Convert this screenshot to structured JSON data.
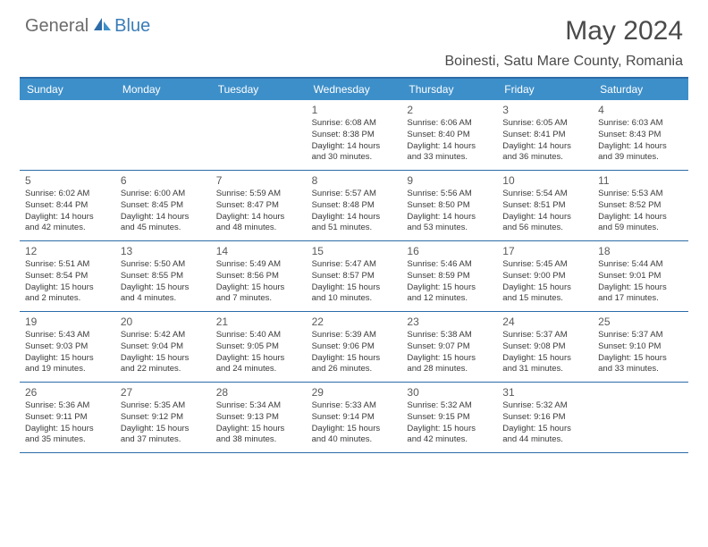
{
  "logo": {
    "text1": "General",
    "text2": "Blue"
  },
  "title": "May 2024",
  "location": "Boinesti, Satu Mare County, Romania",
  "colors": {
    "header_bg": "#3d8fc9",
    "header_text": "#ffffff",
    "border": "#2d6ca8",
    "logo_gray": "#6b6b6b",
    "logo_blue": "#3a7cb8",
    "day_num": "#5a5a5a",
    "info_text": "#3a3a3a"
  },
  "day_names": [
    "Sunday",
    "Monday",
    "Tuesday",
    "Wednesday",
    "Thursday",
    "Friday",
    "Saturday"
  ],
  "weeks": [
    [
      null,
      null,
      null,
      {
        "n": "1",
        "sr": "6:08 AM",
        "ss": "8:38 PM",
        "dl": "14 hours and 30 minutes."
      },
      {
        "n": "2",
        "sr": "6:06 AM",
        "ss": "8:40 PM",
        "dl": "14 hours and 33 minutes."
      },
      {
        "n": "3",
        "sr": "6:05 AM",
        "ss": "8:41 PM",
        "dl": "14 hours and 36 minutes."
      },
      {
        "n": "4",
        "sr": "6:03 AM",
        "ss": "8:43 PM",
        "dl": "14 hours and 39 minutes."
      }
    ],
    [
      {
        "n": "5",
        "sr": "6:02 AM",
        "ss": "8:44 PM",
        "dl": "14 hours and 42 minutes."
      },
      {
        "n": "6",
        "sr": "6:00 AM",
        "ss": "8:45 PM",
        "dl": "14 hours and 45 minutes."
      },
      {
        "n": "7",
        "sr": "5:59 AM",
        "ss": "8:47 PM",
        "dl": "14 hours and 48 minutes."
      },
      {
        "n": "8",
        "sr": "5:57 AM",
        "ss": "8:48 PM",
        "dl": "14 hours and 51 minutes."
      },
      {
        "n": "9",
        "sr": "5:56 AM",
        "ss": "8:50 PM",
        "dl": "14 hours and 53 minutes."
      },
      {
        "n": "10",
        "sr": "5:54 AM",
        "ss": "8:51 PM",
        "dl": "14 hours and 56 minutes."
      },
      {
        "n": "11",
        "sr": "5:53 AM",
        "ss": "8:52 PM",
        "dl": "14 hours and 59 minutes."
      }
    ],
    [
      {
        "n": "12",
        "sr": "5:51 AM",
        "ss": "8:54 PM",
        "dl": "15 hours and 2 minutes."
      },
      {
        "n": "13",
        "sr": "5:50 AM",
        "ss": "8:55 PM",
        "dl": "15 hours and 4 minutes."
      },
      {
        "n": "14",
        "sr": "5:49 AM",
        "ss": "8:56 PM",
        "dl": "15 hours and 7 minutes."
      },
      {
        "n": "15",
        "sr": "5:47 AM",
        "ss": "8:57 PM",
        "dl": "15 hours and 10 minutes."
      },
      {
        "n": "16",
        "sr": "5:46 AM",
        "ss": "8:59 PM",
        "dl": "15 hours and 12 minutes."
      },
      {
        "n": "17",
        "sr": "5:45 AM",
        "ss": "9:00 PM",
        "dl": "15 hours and 15 minutes."
      },
      {
        "n": "18",
        "sr": "5:44 AM",
        "ss": "9:01 PM",
        "dl": "15 hours and 17 minutes."
      }
    ],
    [
      {
        "n": "19",
        "sr": "5:43 AM",
        "ss": "9:03 PM",
        "dl": "15 hours and 19 minutes."
      },
      {
        "n": "20",
        "sr": "5:42 AM",
        "ss": "9:04 PM",
        "dl": "15 hours and 22 minutes."
      },
      {
        "n": "21",
        "sr": "5:40 AM",
        "ss": "9:05 PM",
        "dl": "15 hours and 24 minutes."
      },
      {
        "n": "22",
        "sr": "5:39 AM",
        "ss": "9:06 PM",
        "dl": "15 hours and 26 minutes."
      },
      {
        "n": "23",
        "sr": "5:38 AM",
        "ss": "9:07 PM",
        "dl": "15 hours and 28 minutes."
      },
      {
        "n": "24",
        "sr": "5:37 AM",
        "ss": "9:08 PM",
        "dl": "15 hours and 31 minutes."
      },
      {
        "n": "25",
        "sr": "5:37 AM",
        "ss": "9:10 PM",
        "dl": "15 hours and 33 minutes."
      }
    ],
    [
      {
        "n": "26",
        "sr": "5:36 AM",
        "ss": "9:11 PM",
        "dl": "15 hours and 35 minutes."
      },
      {
        "n": "27",
        "sr": "5:35 AM",
        "ss": "9:12 PM",
        "dl": "15 hours and 37 minutes."
      },
      {
        "n": "28",
        "sr": "5:34 AM",
        "ss": "9:13 PM",
        "dl": "15 hours and 38 minutes."
      },
      {
        "n": "29",
        "sr": "5:33 AM",
        "ss": "9:14 PM",
        "dl": "15 hours and 40 minutes."
      },
      {
        "n": "30",
        "sr": "5:32 AM",
        "ss": "9:15 PM",
        "dl": "15 hours and 42 minutes."
      },
      {
        "n": "31",
        "sr": "5:32 AM",
        "ss": "9:16 PM",
        "dl": "15 hours and 44 minutes."
      },
      null
    ]
  ],
  "labels": {
    "sunrise": "Sunrise:",
    "sunset": "Sunset:",
    "daylight": "Daylight:"
  }
}
